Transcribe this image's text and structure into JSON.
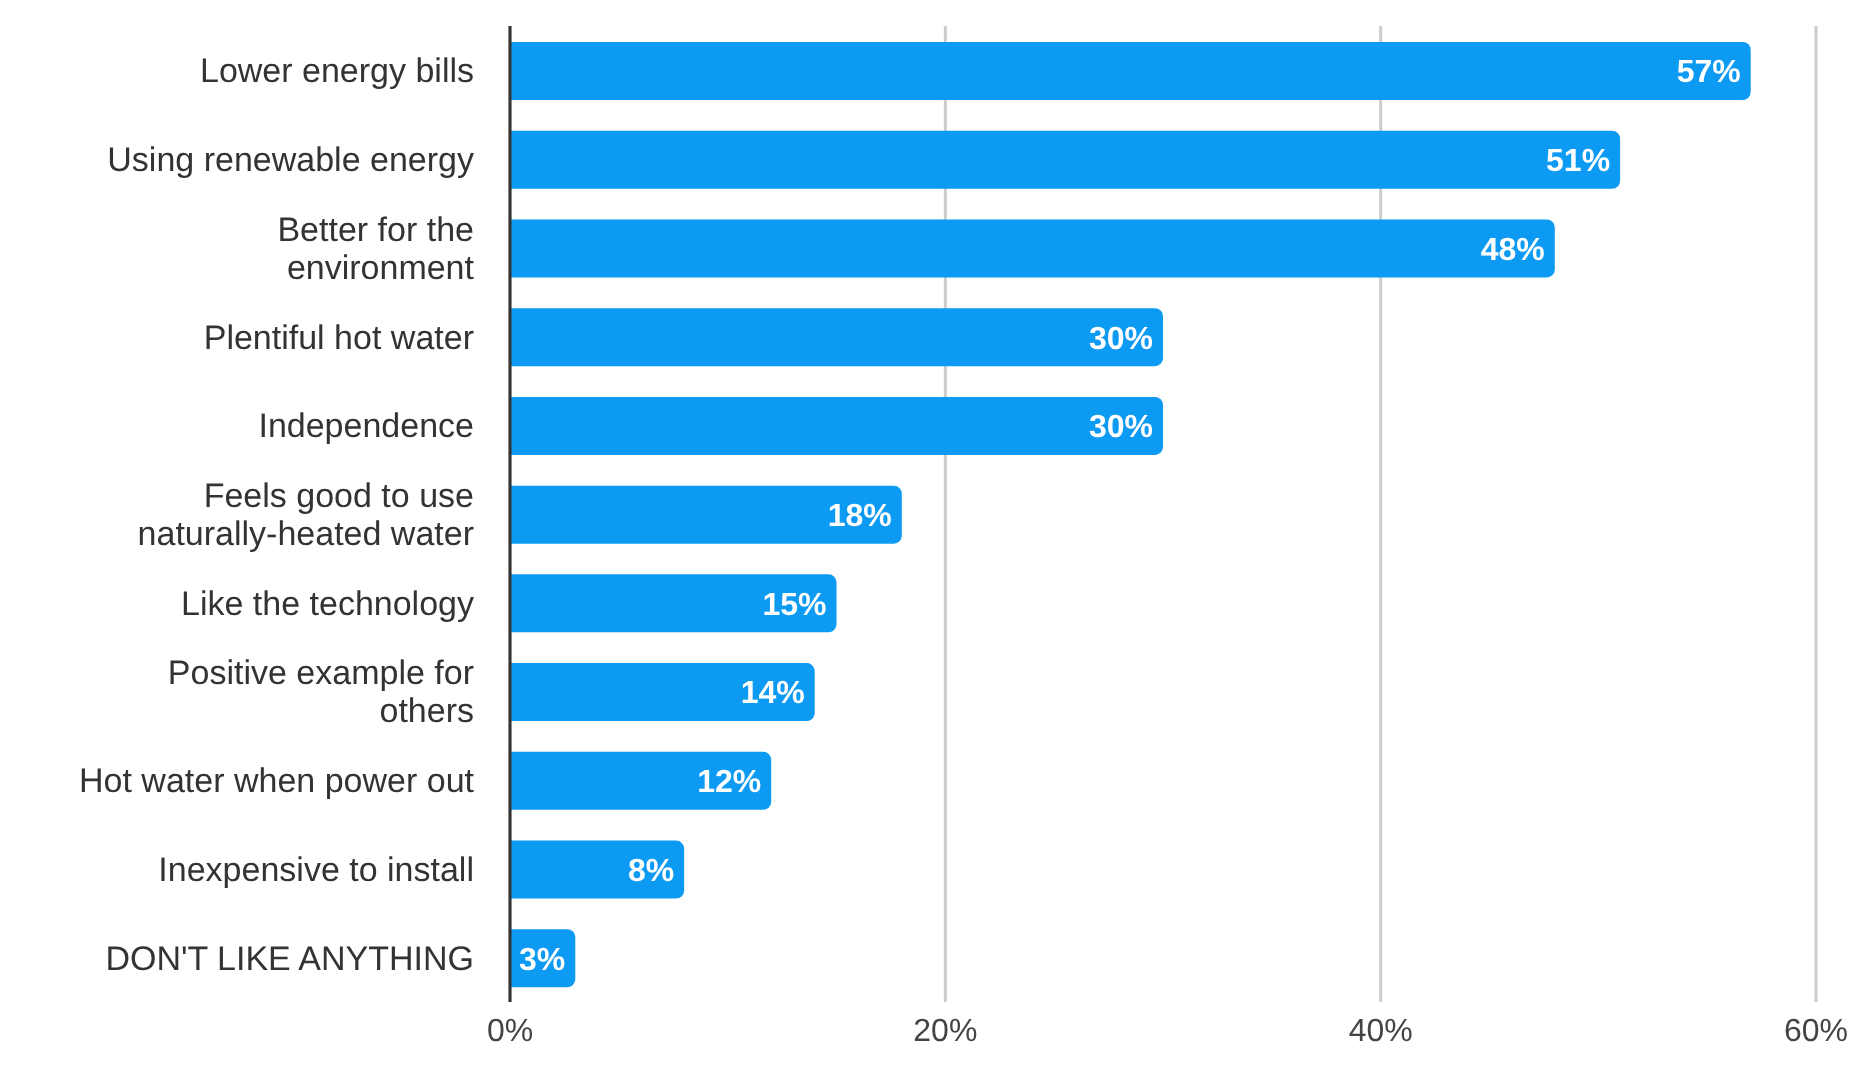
{
  "chart_data": {
    "type": "bar",
    "orientation": "horizontal",
    "categories": [
      "Lower energy bills",
      "Using renewable energy",
      "Better for the environment",
      "Plentiful hot water",
      "Independence",
      "Feels good to use naturally-heated water",
      "Like the technology",
      "Positive example for others",
      "Hot water when power out",
      "Inexpensive to install",
      "DON'T LIKE ANYTHING"
    ],
    "values": [
      57,
      51,
      48,
      30,
      30,
      18,
      15,
      14,
      12,
      8,
      3
    ],
    "value_labels": [
      "57%",
      "51%",
      "48%",
      "30%",
      "30%",
      "18%",
      "15%",
      "14%",
      "12%",
      "8%",
      "3%"
    ],
    "color": "#0d9af2",
    "xlim": [
      0,
      60
    ],
    "xticks": [
      {
        "value": 0,
        "label": "0%"
      },
      {
        "value": 20,
        "label": "20%"
      },
      {
        "value": 40,
        "label": "40%"
      },
      {
        "value": 60,
        "label": "60%"
      }
    ],
    "grid": "x"
  }
}
